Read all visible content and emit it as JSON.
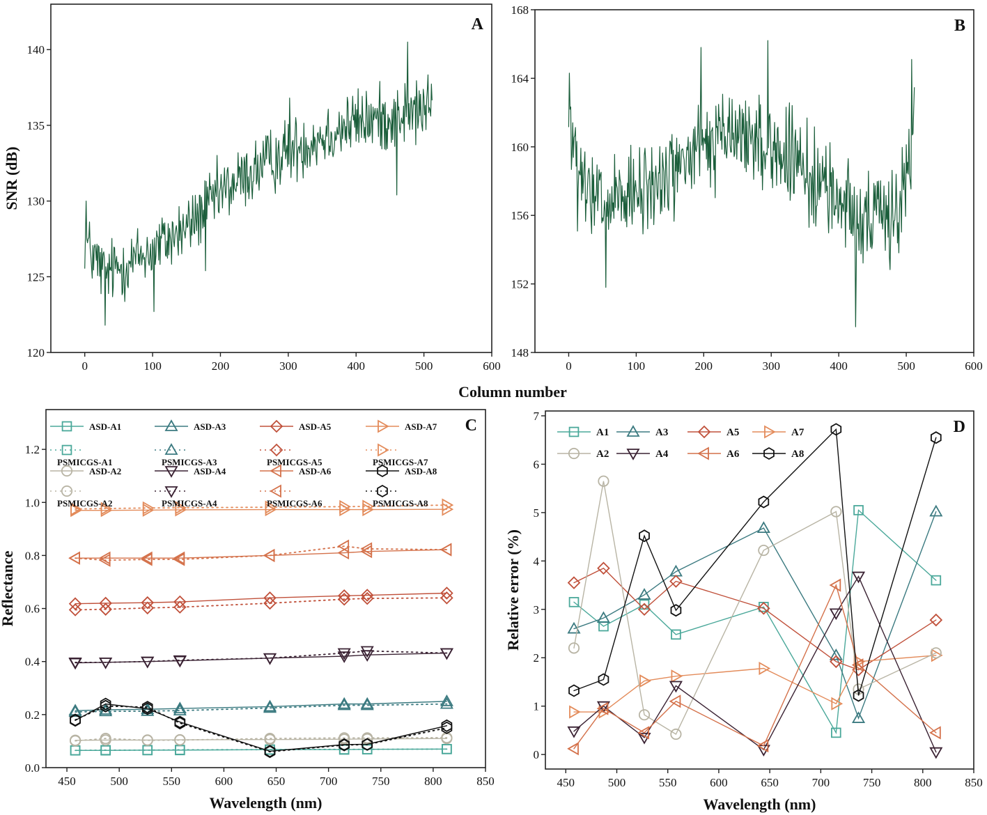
{
  "figure": {
    "shared_xlabel_AB": "Column number"
  },
  "chart_data": [
    {
      "panel": "A",
      "type": "line",
      "xlabel": "",
      "ylabel": "SNR (dB)",
      "xlim": [
        -50,
        600
      ],
      "ylim": [
        120,
        143
      ],
      "xticks": [
        0,
        100,
        200,
        300,
        400,
        500,
        600
      ],
      "yticks": [
        120,
        125,
        130,
        135,
        140
      ],
      "color": "#1b5e3b",
      "series": [
        {
          "name": "SNR",
          "x_start": 0,
          "x_end": 512,
          "noise_amplitude": 1.6,
          "trend": [
            [
              0,
              127.5
            ],
            [
              10,
              126.5
            ],
            [
              30,
              125.2
            ],
            [
              60,
              125.8
            ],
            [
              100,
              126.8
            ],
            [
              150,
              128.2
            ],
            [
              200,
              130.5
            ],
            [
              250,
              132.0
            ],
            [
              300,
              133.3
            ],
            [
              350,
              134.3
            ],
            [
              400,
              135.2
            ],
            [
              450,
              135.5
            ],
            [
              500,
              136.0
            ],
            [
              512,
              136.3
            ]
          ],
          "extremes": [
            [
              30,
              121.8
            ],
            [
              2,
              130.0
            ],
            [
              476,
              140.5
            ],
            [
              460,
              130.4
            ],
            [
              178,
              125.4
            ],
            [
              102,
              122.7
            ],
            [
              302,
              136.8
            ]
          ]
        }
      ]
    },
    {
      "panel": "B",
      "type": "line",
      "xlabel": "",
      "ylabel": "",
      "xlim": [
        -50,
        600
      ],
      "ylim": [
        148,
        168
      ],
      "xticks": [
        0,
        100,
        200,
        300,
        400,
        500,
        600
      ],
      "yticks": [
        148,
        152,
        156,
        160,
        164,
        168
      ],
      "color": "#1b5e3b",
      "series": [
        {
          "name": "SNR",
          "x_start": 0,
          "x_end": 512,
          "noise_amplitude": 2.0,
          "trend": [
            [
              0,
              162.0
            ],
            [
              5,
              160.5
            ],
            [
              12,
              158.2
            ],
            [
              30,
              157.0
            ],
            [
              60,
              156.5
            ],
            [
              100,
              157.0
            ],
            [
              150,
              158.5
            ],
            [
              200,
              160.0
            ],
            [
              250,
              160.8
            ],
            [
              300,
              160.0
            ],
            [
              350,
              158.5
            ],
            [
              400,
              157.0
            ],
            [
              450,
              155.5
            ],
            [
              490,
              156.5
            ],
            [
              505,
              159.0
            ],
            [
              512,
              161.0
            ]
          ],
          "extremes": [
            [
              425,
              149.5
            ],
            [
              55,
              151.8
            ],
            [
              295,
              166.2
            ],
            [
              1,
              164.3
            ],
            [
              508,
              165.1
            ],
            [
              196,
              165.8
            ]
          ]
        }
      ]
    },
    {
      "panel": "C",
      "type": "line",
      "xlabel": "Wavelength (nm)",
      "ylabel": "Reflectance",
      "xlim": [
        430,
        850
      ],
      "ylim": [
        0.0,
        1.35
      ],
      "xticks": [
        450,
        500,
        550,
        600,
        650,
        700,
        750,
        800,
        850
      ],
      "yticks": [
        0.0,
        0.2,
        0.4,
        0.6,
        0.8,
        1.0,
        1.2
      ],
      "wavelengths": [
        458,
        487,
        527,
        558,
        644,
        715,
        737,
        813
      ],
      "series": [
        {
          "name": "ASD-A1",
          "marker": "square",
          "style": "solid",
          "color": "#4aa89a",
          "values": [
            0.065,
            0.065,
            0.066,
            0.066,
            0.068,
            0.068,
            0.069,
            0.07
          ]
        },
        {
          "name": "PSMICGS-A1",
          "marker": "square",
          "style": "dotted",
          "color": "#4aa89a",
          "values": [
            0.065,
            0.066,
            0.066,
            0.067,
            0.068,
            0.069,
            0.069,
            0.07
          ]
        },
        {
          "name": "ASD-A3",
          "marker": "triangle-up",
          "style": "solid",
          "color": "#3b7a80",
          "values": [
            0.215,
            0.218,
            0.22,
            0.223,
            0.23,
            0.24,
            0.24,
            0.25
          ]
        },
        {
          "name": "PSMICGS-A3",
          "marker": "triangle-up",
          "style": "dotted",
          "color": "#3b7a80",
          "values": [
            0.21,
            0.212,
            0.213,
            0.215,
            0.225,
            0.235,
            0.235,
            0.24
          ]
        },
        {
          "name": "ASD-A5",
          "marker": "diamond",
          "style": "solid",
          "color": "#c0503a",
          "values": [
            0.618,
            0.62,
            0.622,
            0.625,
            0.64,
            0.648,
            0.65,
            0.658
          ]
        },
        {
          "name": "PSMICGS-A5",
          "marker": "diamond",
          "style": "dotted",
          "color": "#c0503a",
          "values": [
            0.595,
            0.597,
            0.602,
            0.605,
            0.62,
            0.635,
            0.638,
            0.64
          ]
        },
        {
          "name": "ASD-A7",
          "marker": "triangle-right",
          "style": "solid",
          "color": "#e38b5a",
          "values": [
            0.97,
            0.97,
            0.971,
            0.972,
            0.973,
            0.973,
            0.973,
            0.974
          ]
        },
        {
          "name": "PSMICGS-A7",
          "marker": "triangle-right",
          "style": "dotted",
          "color": "#e38b5a",
          "values": [
            0.975,
            0.977,
            0.979,
            0.98,
            0.982,
            0.984,
            0.985,
            0.99
          ]
        },
        {
          "name": "ASD-A2",
          "marker": "circle",
          "style": "solid",
          "color": "#b8b4a4",
          "values": [
            0.103,
            0.104,
            0.104,
            0.105,
            0.106,
            0.107,
            0.108,
            0.11
          ]
        },
        {
          "name": "PSMICGS-A2",
          "marker": "circle",
          "style": "dotted",
          "color": "#b8b4a4",
          "values": [
            0.101,
            0.11,
            0.103,
            0.104,
            0.11,
            0.112,
            0.112,
            0.113
          ]
        },
        {
          "name": "ASD-A4",
          "marker": "triangle-down",
          "style": "solid",
          "color": "#3a2233",
          "values": [
            0.395,
            0.397,
            0.4,
            0.403,
            0.413,
            0.42,
            0.425,
            0.432
          ]
        },
        {
          "name": "PSMICGS-A4",
          "marker": "triangle-down",
          "style": "dotted",
          "color": "#3a2233",
          "values": [
            0.397,
            0.397,
            0.4,
            0.405,
            0.413,
            0.432,
            0.44,
            0.432
          ]
        },
        {
          "name": "ASD-A6",
          "marker": "triangle-left",
          "style": "solid",
          "color": "#d4714a",
          "values": [
            0.79,
            0.79,
            0.79,
            0.79,
            0.8,
            0.81,
            0.815,
            0.822
          ]
        },
        {
          "name": "PSMICGS-A6",
          "marker": "triangle-left",
          "style": "dotted",
          "color": "#d4714a",
          "values": [
            0.79,
            0.782,
            0.785,
            0.785,
            0.8,
            0.835,
            0.825,
            0.822
          ]
        },
        {
          "name": "ASD-A8",
          "marker": "hexagon",
          "style": "solid",
          "color": "#111111",
          "values": [
            0.178,
            0.24,
            0.222,
            0.172,
            0.062,
            0.087,
            0.088,
            0.158
          ]
        },
        {
          "name": "PSMICGS-A8",
          "marker": "hexagon",
          "style": "dotted",
          "color": "#111111",
          "values": [
            0.18,
            0.232,
            0.228,
            0.168,
            0.06,
            0.085,
            0.087,
            0.15
          ]
        }
      ],
      "legend_rows": [
        [
          "ASD-A1",
          "ASD-A3",
          "ASD-A5",
          "ASD-A7"
        ],
        [
          "PSMICGS-A1",
          "PSMICGS-A3",
          "PSMICGS-A5",
          "PSMICGS-A7"
        ],
        [
          "ASD-A2",
          "ASD-A4",
          "ASD-A6",
          "ASD-A8"
        ],
        [
          "PSMICGS-A2",
          "PSMICGS-A4",
          "PSMICGS-A6",
          "PSMICGS-A8"
        ]
      ],
      "legend_position": "top"
    },
    {
      "panel": "D",
      "type": "line",
      "xlabel": "Wavelength (nm)",
      "ylabel": "Relative error (%)",
      "xlim": [
        430,
        850
      ],
      "ylim": [
        -0.3,
        7.1
      ],
      "xticks": [
        450,
        500,
        550,
        600,
        650,
        700,
        750,
        800,
        850
      ],
      "yticks": [
        0,
        1,
        2,
        3,
        4,
        5,
        6,
        7
      ],
      "wavelengths": [
        458,
        487,
        527,
        558,
        644,
        715,
        737,
        813
      ],
      "series": [
        {
          "name": "A1",
          "marker": "square",
          "color": "#4aa89a",
          "values": [
            3.15,
            2.65,
            3.1,
            2.48,
            3.05,
            0.45,
            5.05,
            3.6
          ]
        },
        {
          "name": "A3",
          "marker": "triangle-up",
          "color": "#3b7a80",
          "values": [
            2.6,
            2.82,
            3.3,
            3.78,
            4.68,
            2.05,
            0.75,
            5.02
          ]
        },
        {
          "name": "A5",
          "marker": "diamond",
          "color": "#c0503a",
          "values": [
            3.55,
            3.85,
            3.0,
            3.58,
            3.02,
            1.92,
            1.75,
            2.78
          ]
        },
        {
          "name": "A7",
          "marker": "triangle-right",
          "color": "#e38b5a",
          "values": [
            0.88,
            0.88,
            1.52,
            1.62,
            1.78,
            1.05,
            1.92,
            2.05
          ]
        },
        {
          "name": "A2",
          "marker": "circle",
          "color": "#b8b4a4",
          "values": [
            2.2,
            5.65,
            0.82,
            0.42,
            4.22,
            5.02,
            1.35,
            2.1
          ]
        },
        {
          "name": "A4",
          "marker": "triangle-down",
          "color": "#3a2233",
          "values": [
            0.48,
            1.0,
            0.35,
            1.42,
            0.1,
            2.92,
            3.68,
            0.05
          ]
        },
        {
          "name": "A6",
          "marker": "triangle-left",
          "color": "#d4714a",
          "values": [
            0.12,
            0.95,
            0.45,
            1.1,
            0.18,
            3.5,
            1.85,
            0.45
          ]
        },
        {
          "name": "A8",
          "marker": "hexagon",
          "color": "#111111",
          "values": [
            1.32,
            1.55,
            4.52,
            2.98,
            5.22,
            6.72,
            1.22,
            6.55
          ]
        }
      ],
      "legend_rows": [
        [
          "A1",
          "A3",
          "A5",
          "A7"
        ],
        [
          "A2",
          "A4",
          "A6",
          "A8"
        ]
      ],
      "legend_position": "top-left"
    }
  ]
}
